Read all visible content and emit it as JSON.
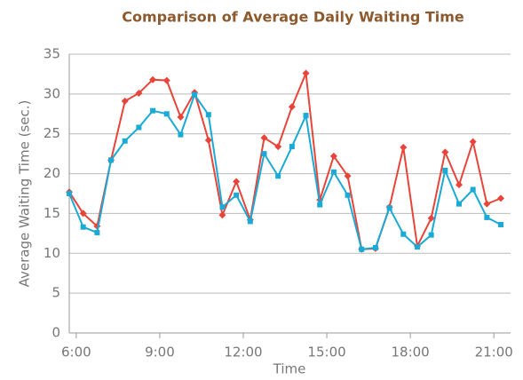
{
  "chart_data": {
    "type": "line",
    "title": "Comparison of Average Daily Waiting Time",
    "xlabel": "Time",
    "ylabel": "Average Waiting Time (sec.)",
    "x": [
      5.75,
      6.25,
      6.75,
      7.25,
      7.75,
      8.25,
      8.75,
      9.25,
      9.75,
      10.25,
      10.75,
      11.25,
      11.75,
      12.25,
      12.75,
      13.25,
      13.75,
      14.25,
      14.75,
      15.25,
      15.75,
      16.25,
      16.75,
      17.25,
      17.75,
      18.25,
      18.75,
      19.25,
      19.75,
      20.25,
      20.75,
      21.25
    ],
    "series": [
      {
        "color": "#e8443a",
        "marker": "diamond",
        "values": [
          17.7,
          15.0,
          13.4,
          21.7,
          29.1,
          30.1,
          31.8,
          31.7,
          27.1,
          30.2,
          24.2,
          14.8,
          19.0,
          14.2,
          24.5,
          23.4,
          28.4,
          32.6,
          16.7,
          22.2,
          19.7,
          10.5,
          10.6,
          15.8,
          23.3,
          10.9,
          14.4,
          22.7,
          18.6,
          24.0,
          16.2,
          16.9
        ]
      },
      {
        "color": "#1aaad6",
        "marker": "square",
        "values": [
          17.5,
          13.3,
          12.6,
          21.7,
          24.1,
          25.8,
          27.9,
          27.5,
          24.9,
          29.9,
          27.4,
          15.8,
          17.3,
          14.0,
          22.5,
          19.7,
          23.4,
          27.3,
          16.1,
          20.2,
          17.3,
          10.5,
          10.7,
          15.7,
          12.4,
          10.8,
          12.3,
          20.4,
          16.2,
          18.0,
          14.5,
          13.6
        ]
      }
    ],
    "xlim": [
      5.75,
      21.6
    ],
    "xticks": [
      {
        "value": 6,
        "label": "6:00"
      },
      {
        "value": 9,
        "label": "9:00"
      },
      {
        "value": 12,
        "label": "12:00"
      },
      {
        "value": 15,
        "label": "15:00"
      },
      {
        "value": 18,
        "label": "18:00"
      },
      {
        "value": 21,
        "label": "21:00"
      }
    ],
    "ylim": [
      0,
      35
    ],
    "yticks": [
      0,
      5,
      10,
      15,
      20,
      25,
      30,
      35
    ],
    "grid": true
  }
}
